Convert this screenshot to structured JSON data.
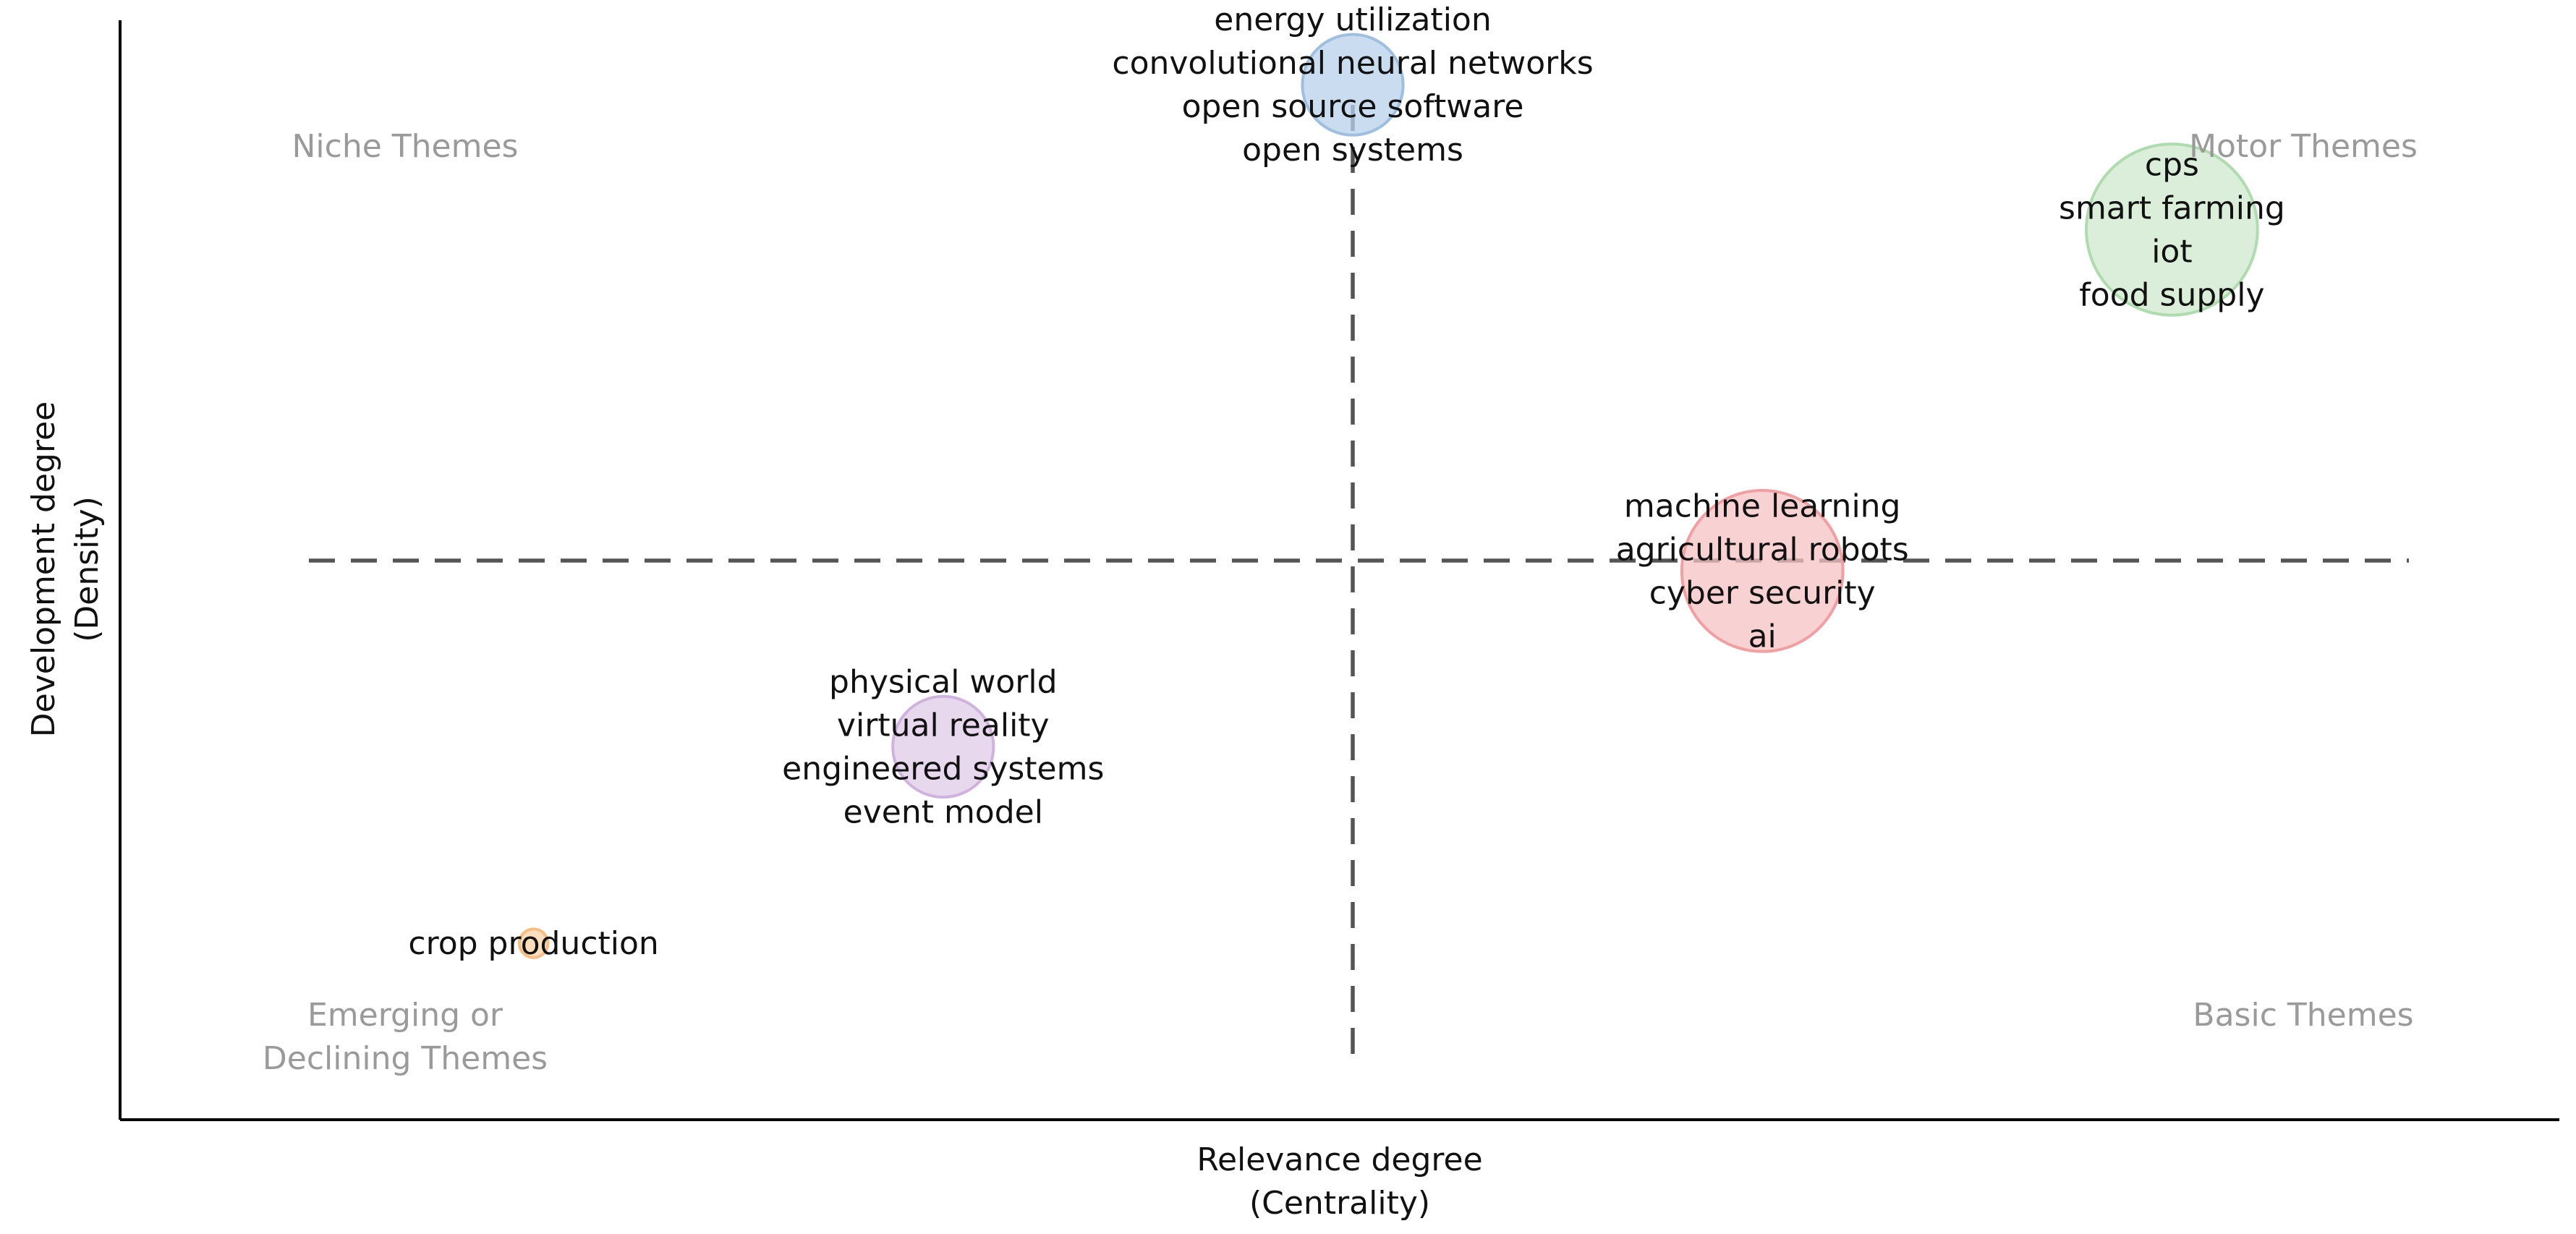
{
  "chart_data": {
    "type": "scatter",
    "subtype": "bubble",
    "title": "",
    "xlabel": [
      "Relevance degree",
      "(Centrality)"
    ],
    "ylabel": [
      "Development degree",
      "(Density)"
    ],
    "xlim": [
      0,
      1
    ],
    "ylim": [
      0,
      1
    ],
    "median_x": 0.5,
    "median_y": 0.5,
    "grid": false,
    "quadrant_labels": {
      "niche": [
        "Niche Themes"
      ],
      "motor": [
        "Motor Themes"
      ],
      "emerging": [
        "Emerging or",
        "Declining Themes"
      ],
      "basic": [
        "Basic Themes"
      ]
    },
    "points": [
      {
        "x": 0.5,
        "y": 0.96,
        "size": 0.3,
        "color": "#b8d0ea",
        "stroke": "#9fbfe0",
        "labels": [
          "energy utilization",
          "convolutional neural networks",
          "open source software",
          "open systems"
        ]
      },
      {
        "x": 0.88,
        "y": 0.82,
        "size": 0.51,
        "color": "#cde8cc",
        "stroke": "#afdcae",
        "labels": [
          "cps",
          "smart farming",
          "iot",
          "food supply"
        ]
      },
      {
        "x": 0.69,
        "y": 0.49,
        "size": 0.48,
        "color": "#f6c2c3",
        "stroke": "#f0a0a2",
        "labels": [
          "machine learning",
          "agricultural robots",
          "cyber security",
          "ai"
        ]
      },
      {
        "x": 0.31,
        "y": 0.32,
        "size": 0.3,
        "color": "#e0cbe7",
        "stroke": "#d0b2de",
        "labels": [
          "physical world",
          "virtual reality",
          "engineered systems",
          "event model"
        ]
      },
      {
        "x": 0.12,
        "y": 0.13,
        "size": 0.085,
        "color": "#fbd2a6",
        "stroke": "#f6bd85",
        "labels": [
          "crop production"
        ]
      }
    ]
  }
}
